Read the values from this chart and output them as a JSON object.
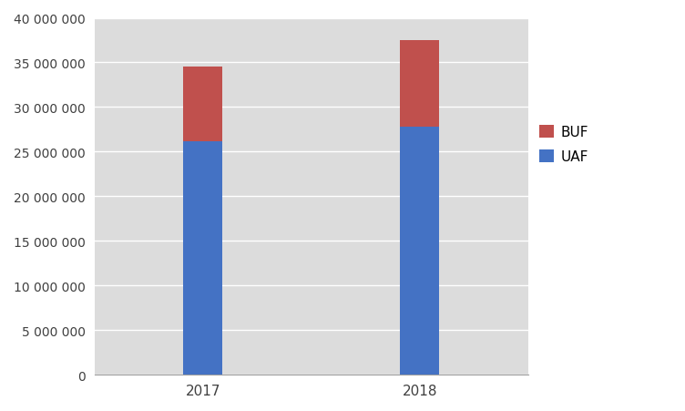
{
  "categories": [
    "2017",
    "2018"
  ],
  "uaf_values": [
    26200000,
    27800000
  ],
  "buf_values": [
    8300000,
    9700000
  ],
  "uaf_color": "#4472C4",
  "buf_color": "#C0504D",
  "ylim": [
    0,
    40000000
  ],
  "yticks": [
    0,
    5000000,
    10000000,
    15000000,
    20000000,
    25000000,
    30000000,
    35000000,
    40000000
  ],
  "background_color": "#FFFFFF",
  "plot_bg_color": "#DCDCDC",
  "grid_color": "#FFFFFF",
  "bar_width": 0.18,
  "figsize": [
    7.52,
    4.52
  ],
  "dpi": 100
}
